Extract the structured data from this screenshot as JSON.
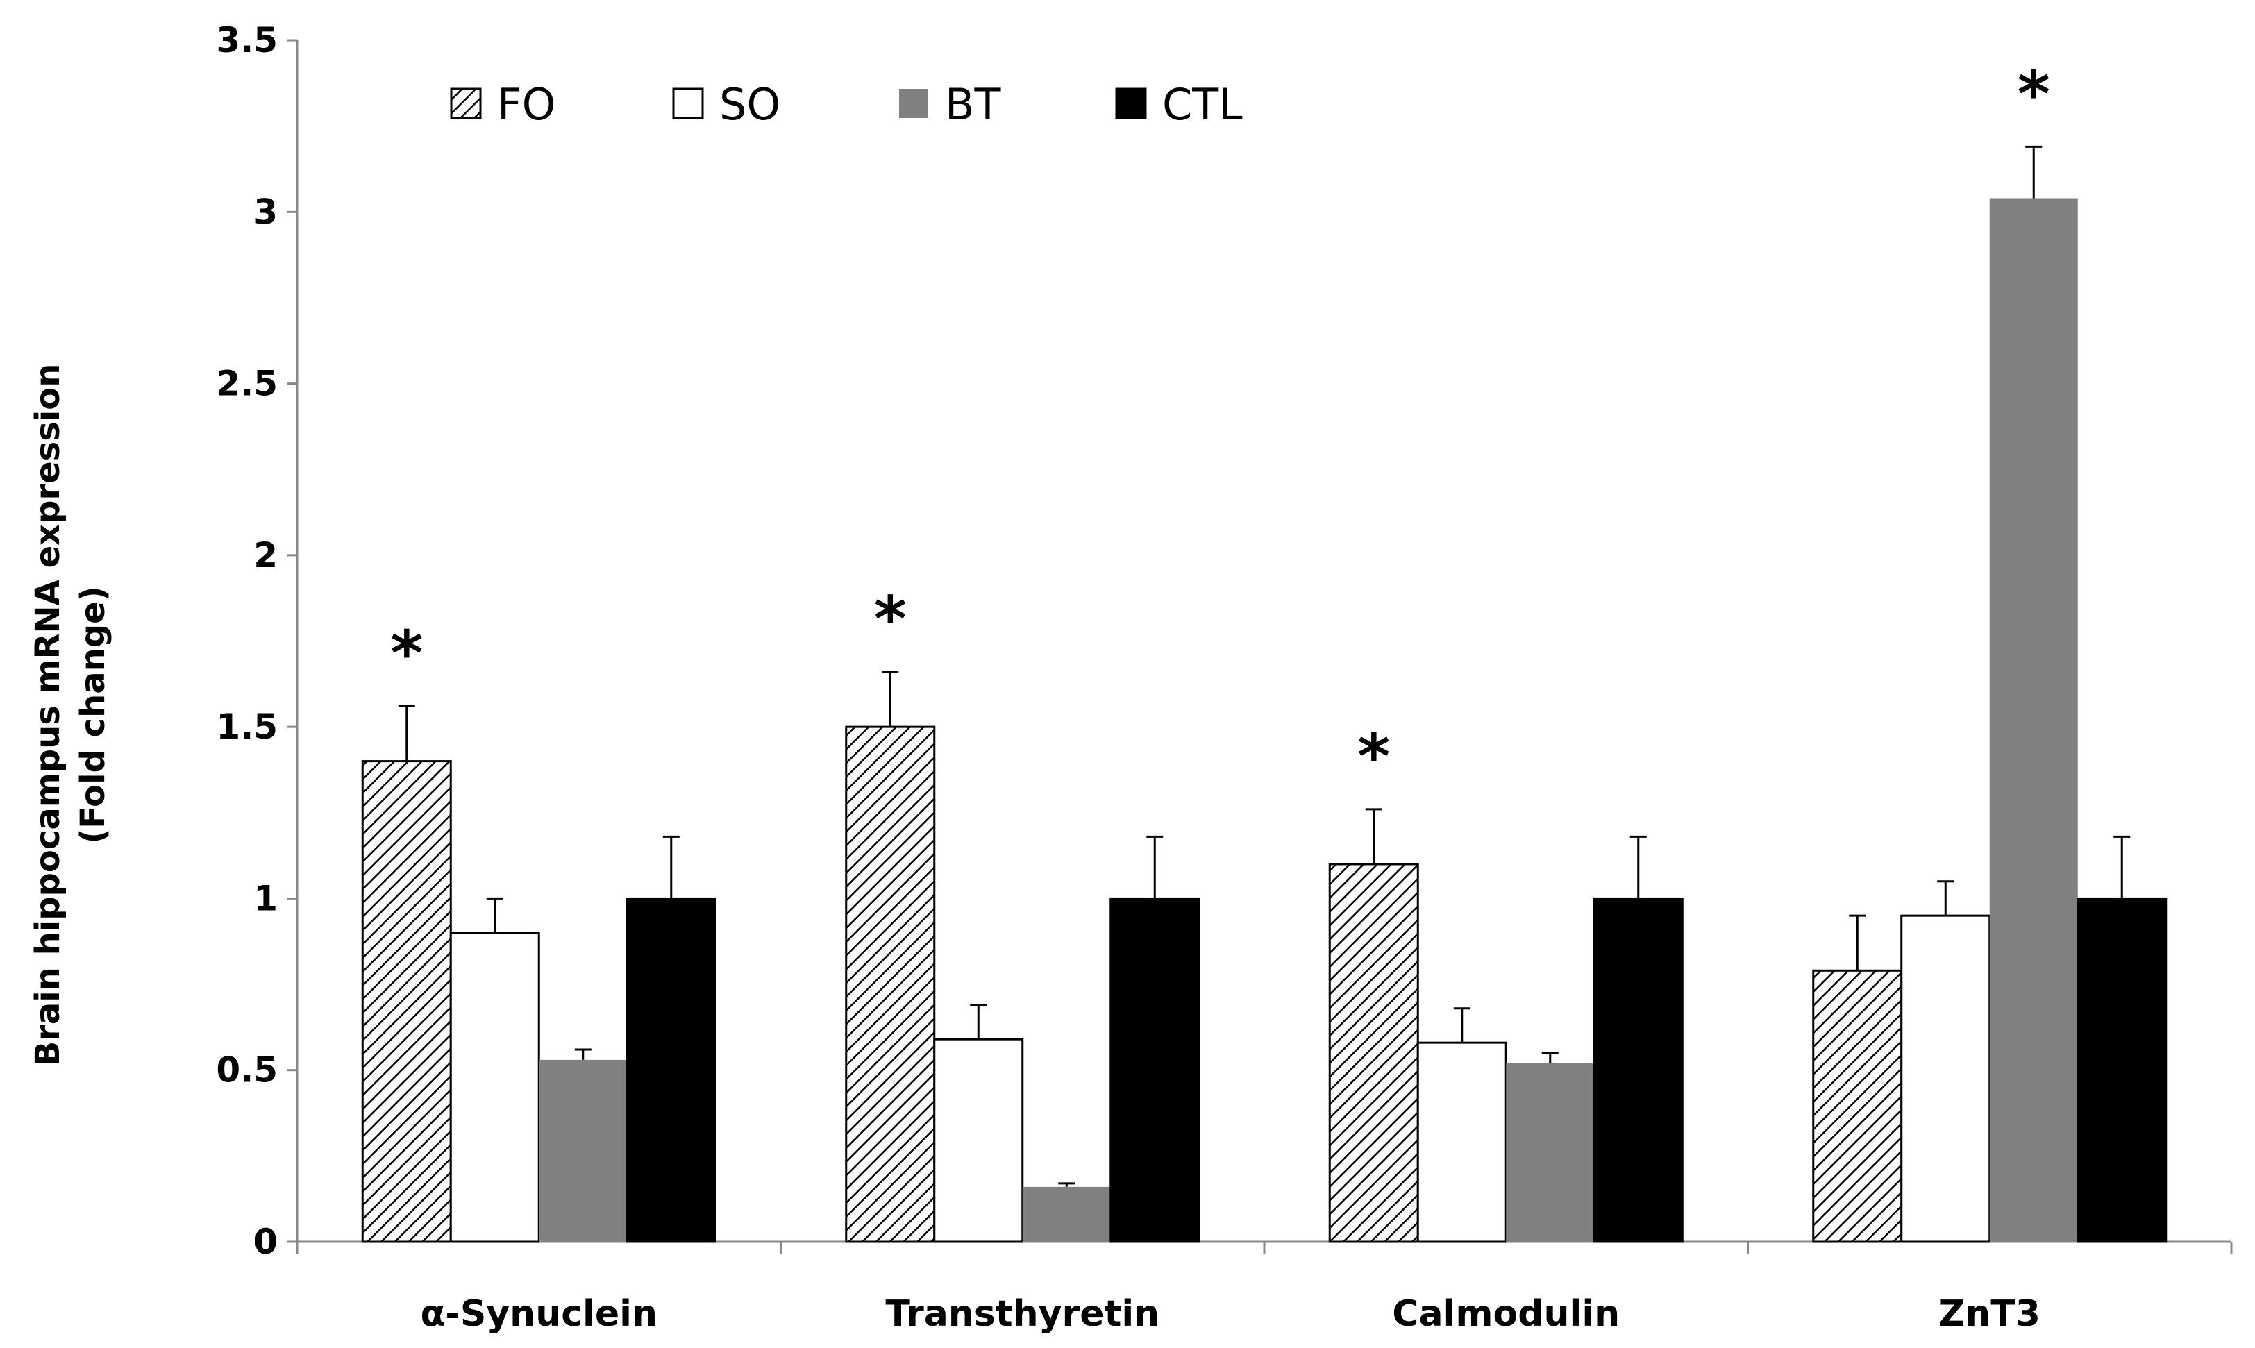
{
  "chart_data": {
    "type": "bar",
    "title": "",
    "xlabel": "",
    "ylabel": [
      "Brain hippocampus mRNA expression",
      "(Fold change)"
    ],
    "ylim": [
      0,
      3.5
    ],
    "yticks": [
      "0",
      "0.5",
      "1",
      "1.5",
      "2",
      "2.5",
      "3",
      "3.5"
    ],
    "grid": false,
    "legend_position": "top",
    "categories": [
      "α-Synuclein",
      "Transthyretin",
      "Calmodulin",
      "ZnT3"
    ],
    "series": [
      {
        "name": "FO",
        "fill": "hatch",
        "color": "#000000",
        "values": [
          1.4,
          1.5,
          1.1,
          0.79
        ],
        "errors": [
          0.16,
          0.16,
          0.16,
          0.16
        ],
        "significant": [
          true,
          true,
          true,
          false
        ]
      },
      {
        "name": "SO",
        "fill": "#ffffff",
        "color": "#000000",
        "values": [
          0.9,
          0.59,
          0.58,
          0.95
        ],
        "errors": [
          0.1,
          0.1,
          0.1,
          0.1
        ],
        "significant": [
          false,
          false,
          false,
          false
        ]
      },
      {
        "name": "BT",
        "fill": "#808080",
        "color": "#808080",
        "values": [
          0.53,
          0.16,
          0.52,
          3.04
        ],
        "errors": [
          0.03,
          0.01,
          0.03,
          0.15
        ],
        "significant": [
          false,
          false,
          false,
          true
        ]
      },
      {
        "name": "CTL",
        "fill": "#000000",
        "color": "#000000",
        "values": [
          1.0,
          1.0,
          1.0,
          1.0
        ],
        "errors": [
          0.18,
          0.18,
          0.18,
          0.18
        ],
        "significant": [
          false,
          false,
          false,
          false
        ]
      }
    ],
    "significance_marker": "*"
  }
}
